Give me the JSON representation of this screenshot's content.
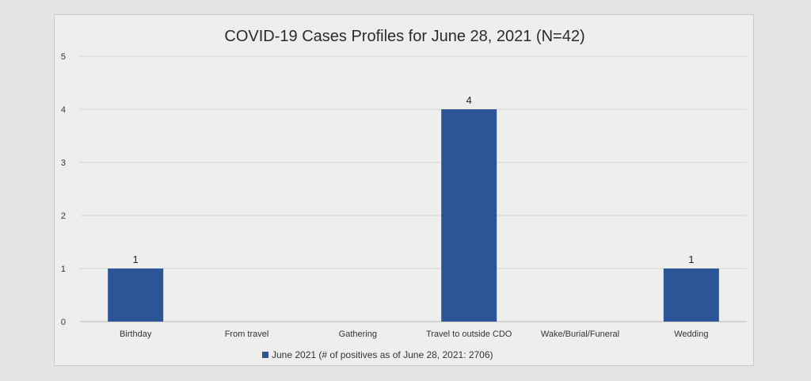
{
  "chart_data": {
    "type": "bar",
    "title": "COVID-19 Cases Profiles for June 28, 2021 (N=42)",
    "categories": [
      "Birthday",
      "From travel",
      "Gathering",
      "Travel to outside CDO",
      "Wake/Burial/Funeral",
      "Wedding"
    ],
    "series": [
      {
        "name": "June 2021 (# of positives as of June 28, 2021: 2706)",
        "values": [
          1,
          null,
          null,
          4,
          null,
          1
        ],
        "color": "#2b5597"
      }
    ],
    "data_labels": [
      "1",
      "",
      "",
      "4",
      "",
      "1"
    ],
    "ylim": [
      0,
      5
    ],
    "yticks": [
      0,
      1,
      2,
      3,
      4,
      5
    ],
    "grid": true,
    "legend_position": "bottom"
  }
}
